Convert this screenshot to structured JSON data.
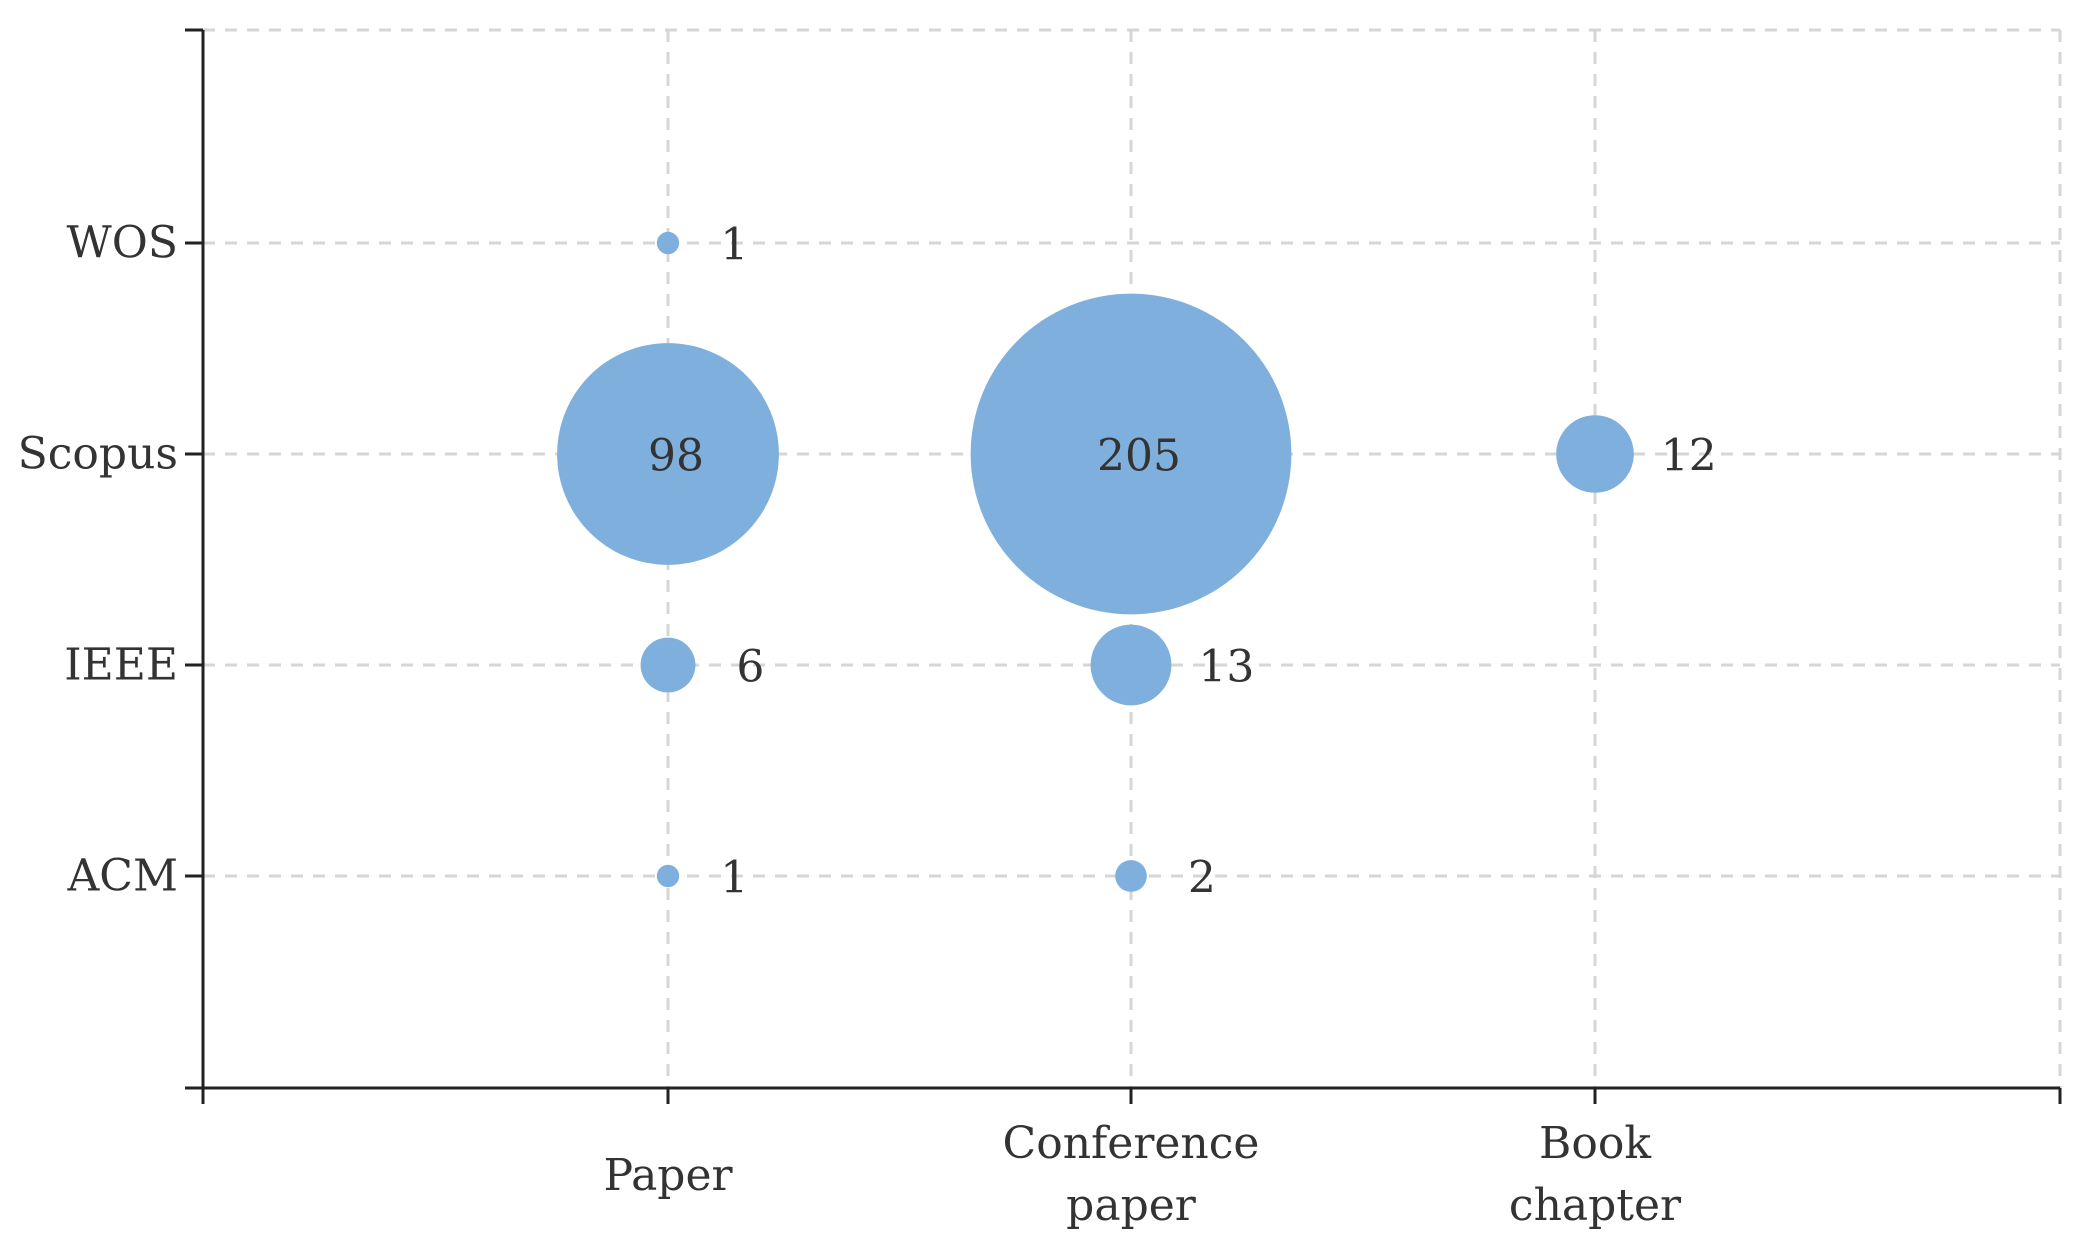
{
  "chart_data": {
    "type": "bubble",
    "x_categories": [
      {
        "lines": [
          "Paper"
        ]
      },
      {
        "lines": [
          "Conference",
          "paper"
        ]
      },
      {
        "lines": [
          "Book",
          "chapter"
        ]
      }
    ],
    "y_categories": [
      "WOS",
      "Scopus",
      "IEEE",
      "ACM"
    ],
    "points": [
      {
        "x": "Paper",
        "y": "WOS",
        "value": 1
      },
      {
        "x": "Paper",
        "y": "Scopus",
        "value": 98
      },
      {
        "x": "Paper",
        "y": "IEEE",
        "value": 6
      },
      {
        "x": "Paper",
        "y": "ACM",
        "value": 1
      },
      {
        "x": "Conference paper",
        "y": "Scopus",
        "value": 205
      },
      {
        "x": "Conference paper",
        "y": "IEEE",
        "value": 13
      },
      {
        "x": "Conference paper",
        "y": "ACM",
        "value": 2
      },
      {
        "x": "Book chapter",
        "y": "Scopus",
        "value": 12
      }
    ],
    "bubble_color": "#7fb0dd",
    "grid": true,
    "title": "",
    "xlabel": "",
    "ylabel": ""
  }
}
